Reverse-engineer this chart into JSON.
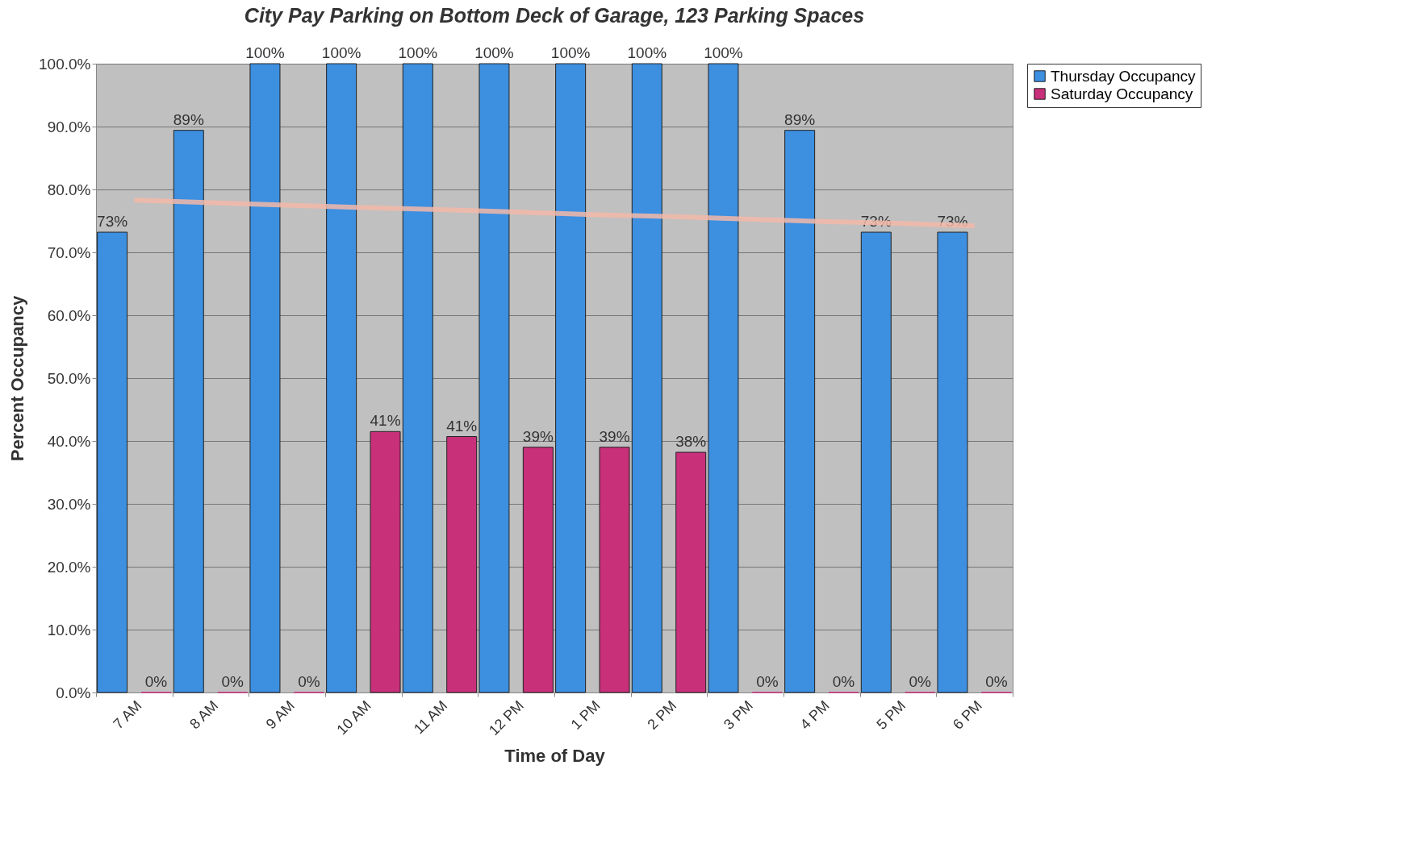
{
  "chart_data": {
    "type": "bar",
    "title": "City Pay Parking on Bottom Deck of Garage, 123 Parking Spaces",
    "xlabel": "Time of Day",
    "ylabel": "Percent Occupancy",
    "categories": [
      "7 AM",
      "8 AM",
      "9 AM",
      "10 AM",
      "11 AM",
      "12 PM",
      "1 PM",
      "2 PM",
      "3 PM",
      "4 PM",
      "5 PM",
      "6 PM"
    ],
    "series": [
      {
        "name": "Thursday Occupancy",
        "color": "#3d8fe0",
        "values": [
          73.2,
          89.4,
          100,
          100,
          100,
          100,
          100,
          100,
          100,
          89.4,
          73.2,
          73.2
        ],
        "value_labels": [
          "73%",
          "89%",
          "100%",
          "100%",
          "100%",
          "100%",
          "100%",
          "100%",
          "100%",
          "89%",
          "73%",
          "73%"
        ]
      },
      {
        "name": "Saturday Occupancy",
        "color": "#c8307a",
        "values": [
          0,
          0,
          0,
          41.5,
          40.7,
          39.0,
          39.0,
          38.2,
          0,
          0,
          0,
          0
        ],
        "value_labels": [
          "0%",
          "0%",
          "0%",
          "41%",
          "41%",
          "39%",
          "39%",
          "38%",
          "0%",
          "0%",
          "0%",
          "0%"
        ]
      },
      {
        "type": "line",
        "color": "#f2b8a8",
        "values": [
          78.3,
          77.9,
          77.5,
          77.1,
          76.8,
          76.4,
          76.0,
          75.7,
          75.3,
          74.9,
          74.6,
          74.2
        ]
      }
    ],
    "ylim": [
      0,
      100
    ],
    "yticks": [
      {
        "value": 0,
        "label": "0.0%"
      },
      {
        "value": 10,
        "label": "10.0%"
      },
      {
        "value": 20,
        "label": "20.0%"
      },
      {
        "value": 30,
        "label": "30.0%"
      },
      {
        "value": 40,
        "label": "40.0%"
      },
      {
        "value": 50,
        "label": "50.0%"
      },
      {
        "value": 60,
        "label": "60.0%"
      },
      {
        "value": 70,
        "label": "70.0%"
      },
      {
        "value": 80,
        "label": "80.0%"
      },
      {
        "value": 90,
        "label": "90.0%"
      },
      {
        "value": 100,
        "label": "100.0%"
      }
    ],
    "grid": "y",
    "legend": "right"
  }
}
